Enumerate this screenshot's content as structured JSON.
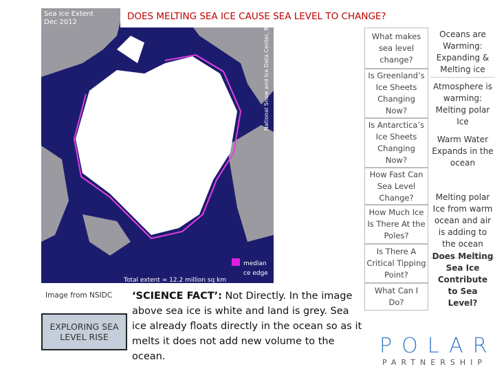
{
  "title": "DOES MELTING SEA ICE CAUSE SEA LEVEL TO CHANGE?",
  "map": {
    "title": "Sea Ice Extent",
    "date": "Dec 2012",
    "credit": "National Snow and Ice Data Center, Boulder, C",
    "legend": [
      "median",
      "ce edge"
    ],
    "total": "Total extent = 12.2 million sq km"
  },
  "caption": "Image from NSIDC",
  "home_button": "EXPLORING SEA LEVEL RISE",
  "fact": {
    "lead": "‘SCIENCE FACT’:",
    "text": " Not Directly.  In the image above sea ice is white and land is grey. Sea ice already floats directly in the ocean so as it melts it does not add new volume to the ocean."
  },
  "menu": [
    "What makes sea level change?",
    "Is Greenland’s Ice Sheets Changing Now?",
    "Is Antarctica’s Ice Sheets Changing Now?",
    "How Fast Can Sea Level Change?",
    "How Much Ice Is There At the Poles?",
    "Is There A Critical Tipping Point?",
    "What Can I Do?"
  ],
  "topics": [
    "Oceans are Warming: Expanding & Melting ice",
    "Atmosphere is warming: Melting polar Ice",
    "Warm Water Expands in the ocean",
    "Melting polar Ice from warm ocean and air is adding to the ocean",
    "Does Melting Sea Ice Contribute to Sea Level?"
  ],
  "logo": {
    "top": "POLAR",
    "bottom": "PARTNERSHIP"
  }
}
